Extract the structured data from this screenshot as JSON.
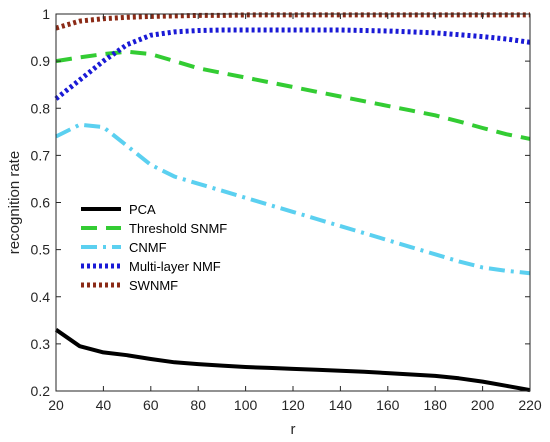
{
  "chart_data": {
    "type": "line",
    "xlabel": "r",
    "ylabel": "recognition rate",
    "xlim": [
      20,
      220
    ],
    "ylim": [
      0.2,
      1
    ],
    "x_ticks": [
      "20",
      "40",
      "60",
      "80",
      "100",
      "120",
      "140",
      "160",
      "180",
      "200",
      "220"
    ],
    "y_ticks": [
      "0.2",
      "0.3",
      "0.4",
      "0.5",
      "0.6",
      "0.7",
      "0.8",
      "0.9",
      "1"
    ],
    "grid": false,
    "legend_position": "middle-left",
    "x": [
      20,
      30,
      40,
      50,
      60,
      70,
      80,
      90,
      100,
      110,
      120,
      130,
      140,
      150,
      160,
      170,
      180,
      190,
      200,
      210,
      220
    ],
    "series": [
      {
        "name": "PCA",
        "color": "#000000",
        "style": "solid",
        "values": [
          0.33,
          0.295,
          0.282,
          0.276,
          0.268,
          0.261,
          0.257,
          0.254,
          0.251,
          0.249,
          0.247,
          0.245,
          0.243,
          0.241,
          0.238,
          0.235,
          0.232,
          0.227,
          0.22,
          0.211,
          0.202
        ]
      },
      {
        "name": "Threshold SNMF",
        "color": "#33cc33",
        "style": "dashed",
        "values": [
          0.9,
          0.908,
          0.915,
          0.92,
          0.915,
          0.9,
          0.885,
          0.875,
          0.865,
          0.855,
          0.845,
          0.835,
          0.825,
          0.815,
          0.805,
          0.795,
          0.785,
          0.772,
          0.758,
          0.745,
          0.735
        ]
      },
      {
        "name": "CNMF",
        "color": "#5bd0f0",
        "style": "dashdot",
        "values": [
          0.74,
          0.765,
          0.76,
          0.72,
          0.68,
          0.655,
          0.64,
          0.625,
          0.61,
          0.595,
          0.58,
          0.565,
          0.55,
          0.535,
          0.52,
          0.505,
          0.49,
          0.475,
          0.462,
          0.455,
          0.45
        ]
      },
      {
        "name": "Multi-layer NMF",
        "color": "#1a1ad6",
        "style": "dotted",
        "values": [
          0.82,
          0.86,
          0.9,
          0.935,
          0.955,
          0.962,
          0.965,
          0.966,
          0.966,
          0.966,
          0.966,
          0.966,
          0.966,
          0.965,
          0.964,
          0.962,
          0.96,
          0.956,
          0.952,
          0.947,
          0.94
        ]
      },
      {
        "name": "SWNMF",
        "color": "#8b2a16",
        "style": "dotted",
        "values": [
          0.97,
          0.985,
          0.99,
          0.993,
          0.995,
          0.996,
          0.997,
          0.997,
          0.998,
          0.998,
          0.998,
          0.998,
          0.998,
          0.998,
          0.998,
          0.998,
          0.998,
          0.998,
          0.998,
          0.998,
          0.998
        ]
      }
    ]
  }
}
